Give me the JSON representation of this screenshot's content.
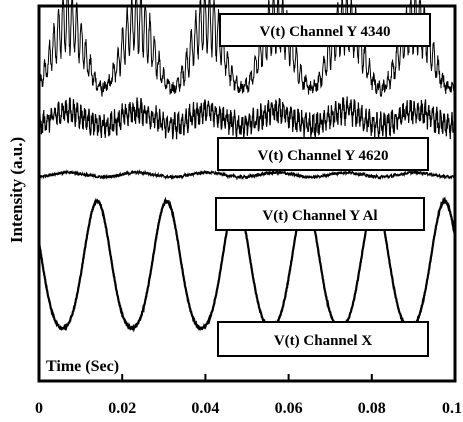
{
  "chart_data": {
    "type": "line",
    "title": "",
    "xlabel": "Time (Sec)",
    "ylabel": "Intensity (a.u.)",
    "xlim": [
      0,
      0.1
    ],
    "x_ticks": [
      "0",
      "0.02",
      "0.04",
      "0.06",
      "0.08",
      "0.1"
    ],
    "x_tick_values": [
      0,
      0.02,
      0.04,
      0.06,
      0.08,
      0.1
    ],
    "y_units": "arbitrary",
    "grid": false,
    "series": [
      {
        "name": "V(t) Channel Y 4340",
        "shape": "sine with high-frequency fine structure",
        "fundamental_period_s": 0.0167,
        "relative_offset": 0.87,
        "relative_amplitude": 0.09,
        "fine_structure_amplitude": 0.08
      },
      {
        "name": "V(t) Channel Y 4620",
        "shape": "noisy band",
        "fundamental_period_s": 0.0167,
        "relative_offset": 0.7,
        "relative_amplitude": 0.02,
        "fine_structure_amplitude": 0.04
      },
      {
        "name": "V(t) Channel Y Al",
        "shape": "nearly flat",
        "fundamental_period_s": 0.0167,
        "relative_offset": 0.55,
        "relative_amplitude": 0.006,
        "fine_structure_amplitude": 0.008
      },
      {
        "name": "V(t) Channel X",
        "shape": "sinusoid",
        "fundamental_period_s": 0.0167,
        "relative_offset": 0.29,
        "relative_amplitude": 0.19,
        "first_peak_s": 0.014,
        "fine_structure_amplitude": 0.005
      }
    ]
  }
}
